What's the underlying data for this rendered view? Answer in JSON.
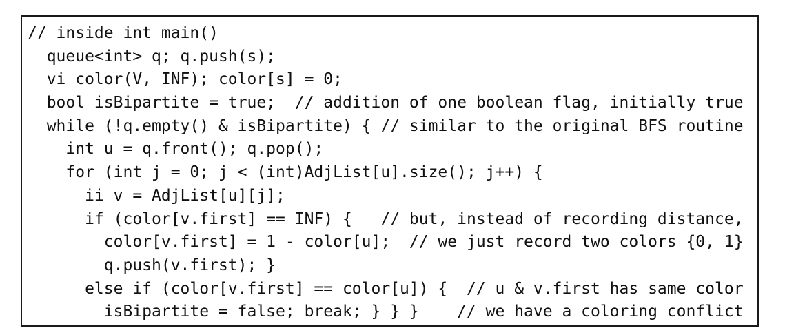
{
  "code": {
    "lines": [
      "// inside int main()",
      "  queue<int> q; q.push(s);",
      "  vi color(V, INF); color[s] = 0;",
      "  bool isBipartite = true;  // addition of one boolean flag, initially true",
      "  while (!q.empty() & isBipartite) { // similar to the original BFS routine",
      "    int u = q.front(); q.pop();",
      "    for (int j = 0; j < (int)AdjList[u].size(); j++) {",
      "      ii v = AdjList[u][j];",
      "      if (color[v.first] == INF) {   // but, instead of recording distance,",
      "        color[v.first] = 1 - color[u];  // we just record two colors {0, 1}",
      "        q.push(v.first); }",
      "      else if (color[v.first] == color[u]) {  // u & v.first has same color",
      "        isBipartite = false; break; } } }    // we have a coloring conflict"
    ]
  }
}
